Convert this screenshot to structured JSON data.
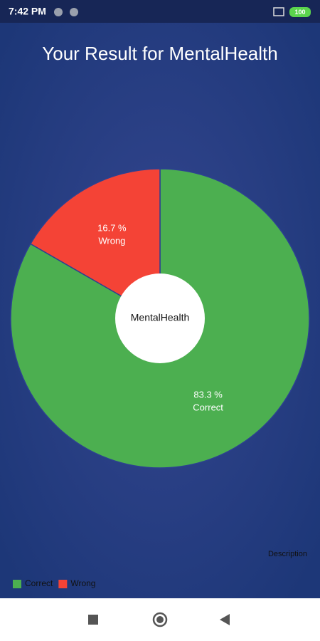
{
  "status_bar": {
    "time": "7:42 PM",
    "battery": "100"
  },
  "chart_data": {
    "type": "pie",
    "title": "Your Result for MentalHealth",
    "center_text": "MentalHealth",
    "description": "Description",
    "categories": [
      "Correct",
      "Wrong"
    ],
    "values": [
      83.3,
      16.7
    ],
    "value_labels": [
      "83.3 %",
      "16.7 %"
    ],
    "colors": [
      "#4caf50",
      "#f44336"
    ],
    "legend": "bottom-left"
  }
}
